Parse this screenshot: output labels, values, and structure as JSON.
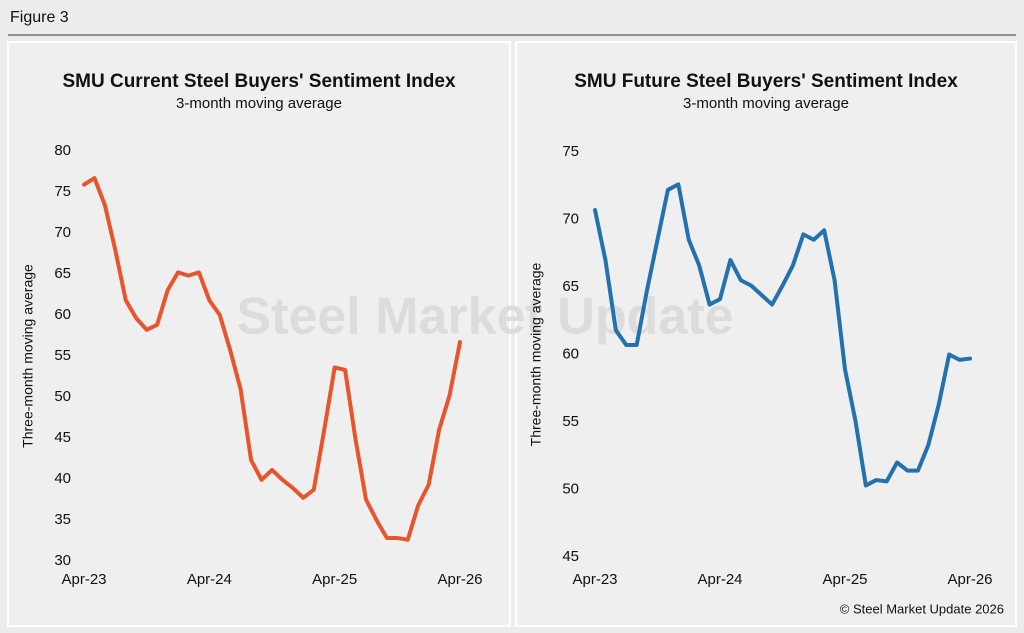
{
  "figure_label": "Figure 3",
  "copyright": "© Steel Market Update 2026",
  "watermark": "Steel Market Update",
  "chart_data": [
    {
      "type": "line",
      "title": "SMU Current Steel Buyers' Sentiment Index",
      "subtitle": "3-month moving average",
      "y_label": "Three-month moving average",
      "color": "#e8542b",
      "categories": [
        "Apr-23",
        null,
        null,
        null,
        null,
        null,
        null,
        null,
        null,
        null,
        null,
        null,
        "Apr-24",
        null,
        null,
        null,
        null,
        null,
        null,
        null,
        null,
        null,
        null,
        null,
        "Apr-25",
        null,
        null,
        null,
        null,
        null,
        null,
        null,
        null,
        null,
        null,
        null,
        "Apr-26"
      ],
      "values": [
        75.9,
        76.7,
        73.4,
        67.9,
        61.8,
        59.6,
        58.2,
        58.8,
        63,
        65.2,
        64.8,
        65.2,
        61.8,
        60,
        55.7,
        50.9,
        42.3,
        39.9,
        41.1,
        39.9,
        38.9,
        37.7,
        38.7,
        46,
        53.6,
        53.3,
        44.8,
        37.5,
        35,
        32.8,
        32.8,
        32.6,
        36.8,
        39.3,
        46,
        50.2,
        56.7
      ],
      "ylim": [
        30,
        80
      ],
      "yticks": [
        30,
        35,
        40,
        45,
        50,
        55,
        60,
        65,
        70,
        75,
        80
      ]
    },
    {
      "type": "line",
      "title": "SMU Future Steel Buyers' Sentiment Index",
      "subtitle": "3-month moving average",
      "y_label": "Three-month moving average",
      "color": "#2372ae",
      "categories": [
        "Apr-23",
        null,
        null,
        null,
        null,
        null,
        null,
        null,
        null,
        null,
        null,
        null,
        "Apr-24",
        null,
        null,
        null,
        null,
        null,
        null,
        null,
        null,
        null,
        null,
        null,
        "Apr-25",
        null,
        null,
        null,
        null,
        null,
        null,
        null,
        null,
        null,
        null,
        null,
        "Apr-26"
      ],
      "values": [
        70.7,
        67,
        61.8,
        60.7,
        60.7,
        64.8,
        68.5,
        72.2,
        72.6,
        68.5,
        66.6,
        63.7,
        64.1,
        67,
        65.5,
        65.1,
        64.4,
        63.7,
        65.1,
        66.6,
        68.9,
        68.5,
        69.2,
        65.5,
        58.9,
        55.1,
        50.3,
        50.7,
        50.6,
        52,
        51.4,
        51.4,
        53.3,
        56.3,
        60,
        59.6,
        59.7
      ],
      "ylim": [
        45,
        75
      ],
      "yticks": [
        45,
        50,
        55,
        60,
        65,
        70,
        75
      ]
    }
  ]
}
